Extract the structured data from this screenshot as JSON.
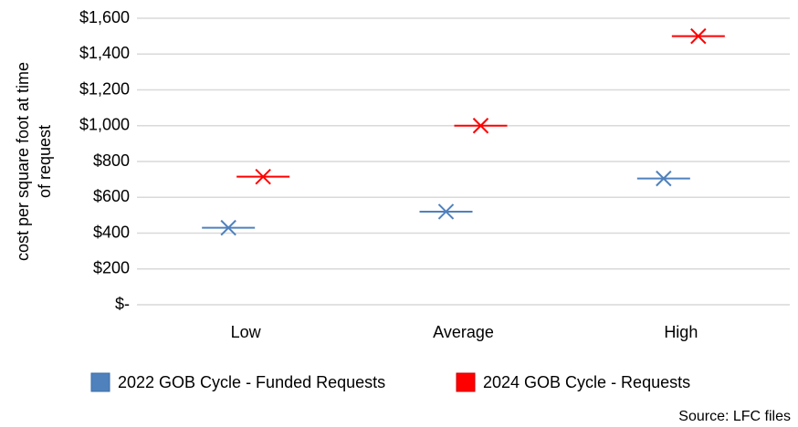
{
  "chart_data": {
    "type": "marker",
    "y_label": [
      "cost per square foot at time",
      "of request"
    ],
    "categories": [
      "Low",
      "Average",
      "High"
    ],
    "series": [
      {
        "name": "2022 GOB Cycle - Funded Requests",
        "color": "#4f81bd",
        "values": [
          430,
          520,
          705
        ]
      },
      {
        "name": "2024 GOB Cycle - Requests",
        "color": "#ff0000",
        "values": [
          715,
          1000,
          1500
        ]
      }
    ],
    "ylim": [
      0,
      1600
    ],
    "yticks": [
      {
        "value": 0,
        "label": "$-"
      },
      {
        "value": 200,
        "label": "$200"
      },
      {
        "value": 400,
        "label": "$400"
      },
      {
        "value": 600,
        "label": "$600"
      },
      {
        "value": 800,
        "label": "$800"
      },
      {
        "value": 1000,
        "label": "$1,000"
      },
      {
        "value": 1200,
        "label": "$1,200"
      },
      {
        "value": 1400,
        "label": "$1,400"
      },
      {
        "value": 1600,
        "label": "$1,600"
      }
    ],
    "grid": true,
    "source": "Source: LFC files"
  }
}
